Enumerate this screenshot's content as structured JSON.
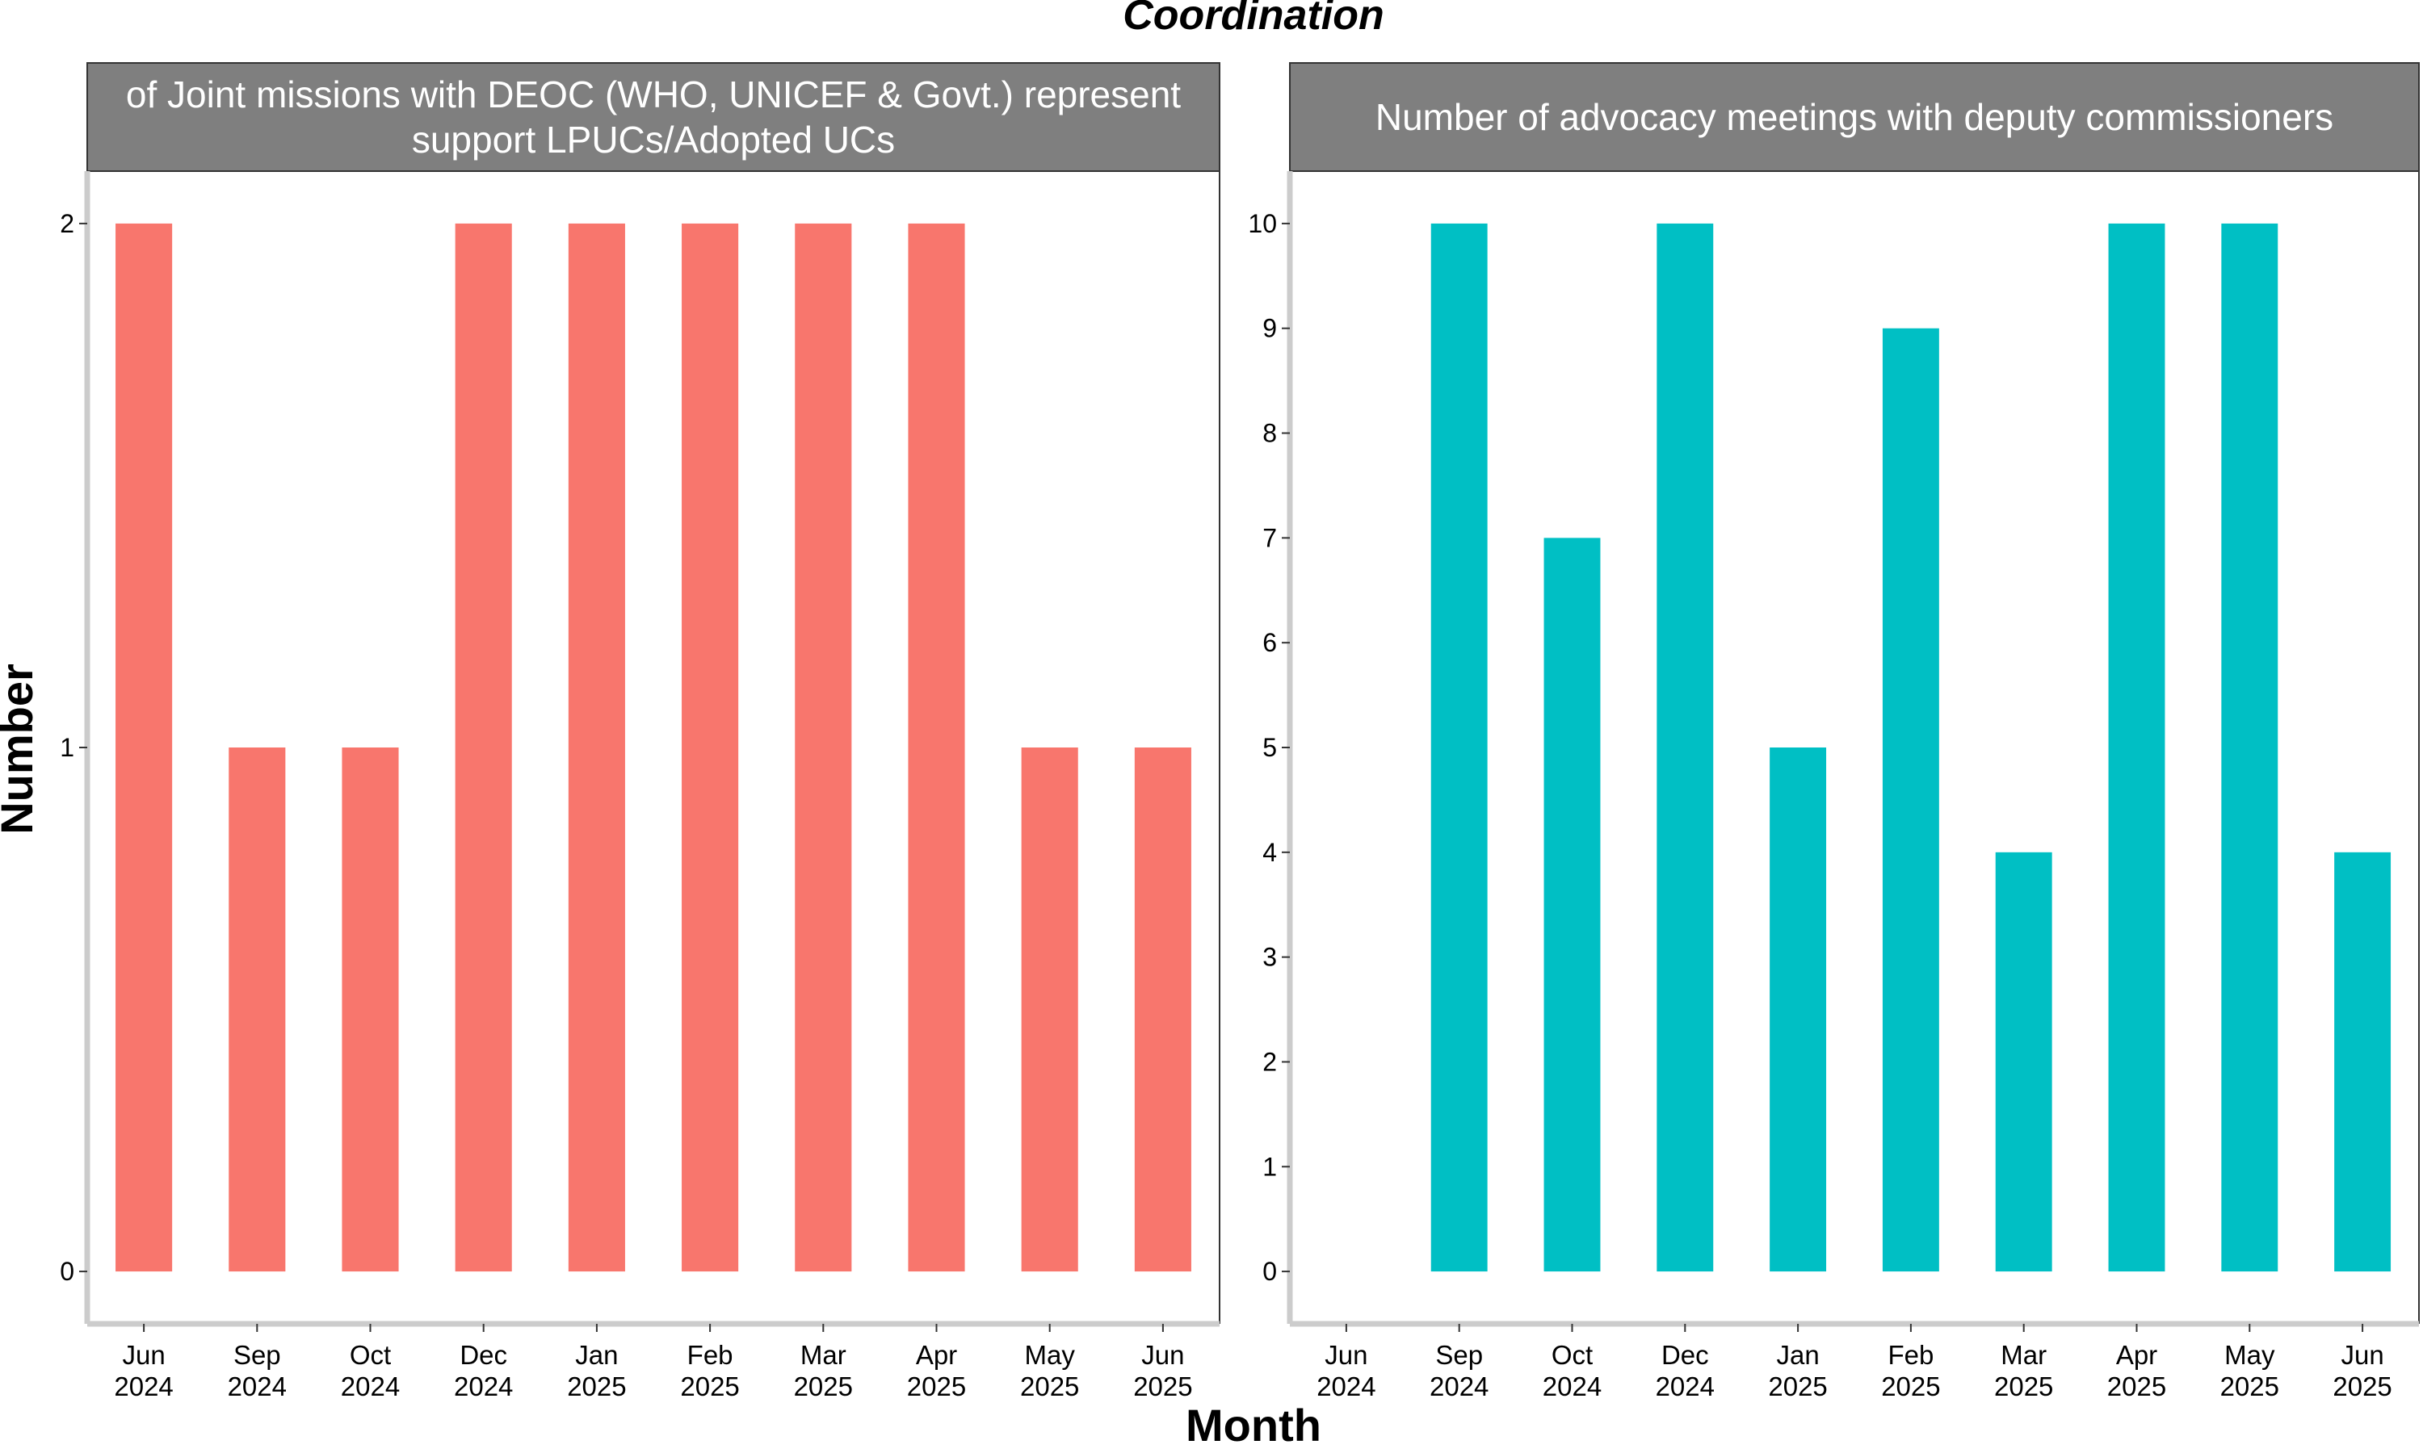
{
  "title": "Coordination",
  "xlabel": "Month",
  "ylabel": "Number",
  "colors": {
    "left_bars": "#F8766D",
    "right_bars": "#00BFC4",
    "strip_bg": "#7F7F7F",
    "axis": "#CCCCCC"
  },
  "chart_data": [
    {
      "type": "bar",
      "panel_title_lines": [
        "of Joint missions with DEOC (WHO, UNICEF & Govt.) represent",
        "support LPUCs/Adopted UCs"
      ],
      "categories": [
        [
          "Jun",
          "2024"
        ],
        [
          "Sep",
          "2024"
        ],
        [
          "Oct",
          "2024"
        ],
        [
          "Dec",
          "2024"
        ],
        [
          "Jan",
          "2025"
        ],
        [
          "Feb",
          "2025"
        ],
        [
          "Mar",
          "2025"
        ],
        [
          "Apr",
          "2025"
        ],
        [
          "May",
          "2025"
        ],
        [
          "Jun",
          "2025"
        ]
      ],
      "values": [
        2,
        1,
        1,
        2,
        2,
        2,
        2,
        2,
        1,
        1
      ],
      "ylim": [
        -0.1,
        2.1
      ],
      "yticks": [
        0,
        1,
        2
      ]
    },
    {
      "type": "bar",
      "panel_title_lines": [
        "Number of advocacy meetings with deputy commissioners"
      ],
      "categories": [
        [
          "Jun",
          "2024"
        ],
        [
          "Sep",
          "2024"
        ],
        [
          "Oct",
          "2024"
        ],
        [
          "Dec",
          "2024"
        ],
        [
          "Jan",
          "2025"
        ],
        [
          "Feb",
          "2025"
        ],
        [
          "Mar",
          "2025"
        ],
        [
          "Apr",
          "2025"
        ],
        [
          "May",
          "2025"
        ],
        [
          "Jun",
          "2025"
        ]
      ],
      "values": [
        0,
        10,
        7,
        10,
        5,
        9,
        4,
        10,
        10,
        4
      ],
      "ylim": [
        -0.5,
        10.5
      ],
      "yticks": [
        0,
        1,
        2,
        3,
        4,
        5,
        6,
        7,
        8,
        9,
        10
      ]
    }
  ]
}
